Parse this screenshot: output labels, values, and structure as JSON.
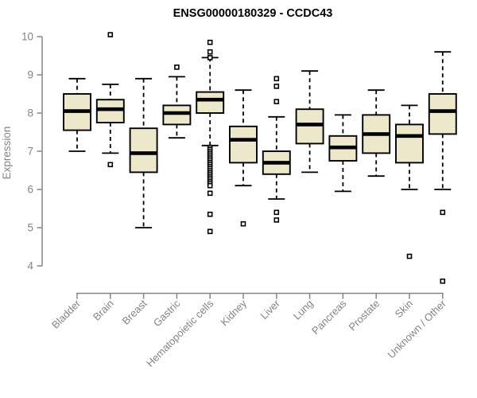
{
  "page": {
    "background_color": "#ffffff"
  },
  "chart_data": {
    "type": "boxplot",
    "title": "ENSG00000180329 - CCDC43",
    "ylabel": "Expression",
    "xlabel": "",
    "ylim": [
      3.5,
      10.3
    ],
    "yticks": [
      4,
      5,
      6,
      7,
      8,
      9,
      10
    ],
    "grid": false,
    "legend": null,
    "categories": [
      "Bladder",
      "Brain",
      "Breast",
      "Gastric",
      "Hematopoietic cells",
      "Kidney",
      "Liver",
      "Lung",
      "Pancreas",
      "Prostate",
      "Skin",
      "Unknown / Other"
    ],
    "boxes": [
      {
        "label": "Bladder",
        "whislo": 7.0,
        "q1": 7.55,
        "med": 8.05,
        "q3": 8.5,
        "whishi": 8.9,
        "outliers": []
      },
      {
        "label": "Brain",
        "whislo": 6.95,
        "q1": 7.75,
        "med": 8.1,
        "q3": 8.35,
        "whishi": 8.75,
        "outliers": [
          10.05,
          6.65
        ]
      },
      {
        "label": "Breast",
        "whislo": 5.0,
        "q1": 6.45,
        "med": 6.95,
        "q3": 7.6,
        "whishi": 8.9,
        "outliers": []
      },
      {
        "label": "Gastric",
        "whislo": 7.35,
        "q1": 7.7,
        "med": 8.0,
        "q3": 8.2,
        "whishi": 8.95,
        "outliers": [
          9.2
        ]
      },
      {
        "label": "Hematopoietic cells",
        "whislo": 7.15,
        "q1": 8.0,
        "med": 8.35,
        "q3": 8.55,
        "whishi": 9.45,
        "outliers": [
          9.85,
          9.6,
          9.45,
          7.1,
          7.05,
          7.0,
          6.95,
          6.9,
          6.85,
          6.8,
          6.75,
          6.7,
          6.65,
          6.6,
          6.55,
          6.5,
          6.45,
          6.4,
          6.35,
          6.3,
          6.25,
          6.2,
          6.15,
          6.1,
          5.9,
          5.35,
          4.9
        ]
      },
      {
        "label": "Kidney",
        "whislo": 6.1,
        "q1": 6.7,
        "med": 7.3,
        "q3": 7.65,
        "whishi": 8.6,
        "outliers": [
          5.1
        ]
      },
      {
        "label": "Liver",
        "whislo": 5.75,
        "q1": 6.4,
        "med": 6.7,
        "q3": 7.0,
        "whishi": 7.9,
        "outliers": [
          8.9,
          8.7,
          8.3,
          5.4,
          5.2
        ]
      },
      {
        "label": "Lung",
        "whislo": 6.45,
        "q1": 7.2,
        "med": 7.7,
        "q3": 8.1,
        "whishi": 9.1,
        "outliers": []
      },
      {
        "label": "Pancreas",
        "whislo": 5.95,
        "q1": 6.75,
        "med": 7.1,
        "q3": 7.4,
        "whishi": 7.95,
        "outliers": []
      },
      {
        "label": "Prostate",
        "whislo": 6.35,
        "q1": 6.95,
        "med": 7.45,
        "q3": 7.95,
        "whishi": 8.6,
        "outliers": []
      },
      {
        "label": "Skin",
        "whislo": 6.0,
        "q1": 6.7,
        "med": 7.4,
        "q3": 7.7,
        "whishi": 8.2,
        "outliers": [
          4.25
        ]
      },
      {
        "label": "Unknown / Other",
        "whislo": 6.0,
        "q1": 7.45,
        "med": 8.05,
        "q3": 8.5,
        "whishi": 9.6,
        "outliers": [
          5.4,
          3.6
        ]
      }
    ],
    "colors": {
      "box_fill": "#ede7cc",
      "box_stroke": "#000000",
      "median": "#000000",
      "whisker": "#000000",
      "outlier_stroke": "#000000",
      "outlier_fill": "#ffffff",
      "axis": "#858585",
      "tick_label": "#848484",
      "title": "#000000"
    }
  }
}
